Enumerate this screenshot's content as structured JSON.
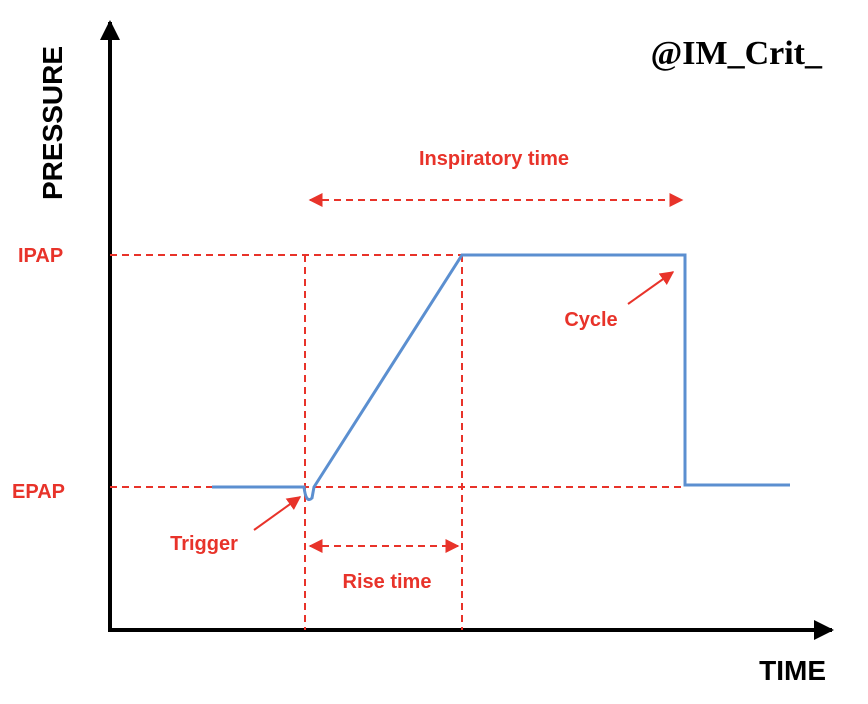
{
  "watermark": "@IM_Crit_",
  "axes": {
    "y_label": "PRESSURE",
    "x_label": "TIME"
  },
  "levels": {
    "ipap": "IPAP",
    "epap": "EPAP"
  },
  "annotations": {
    "inspiratory_time": "Inspiratory time",
    "cycle": "Cycle",
    "trigger": "Trigger",
    "rise_time": "Rise time"
  }
}
